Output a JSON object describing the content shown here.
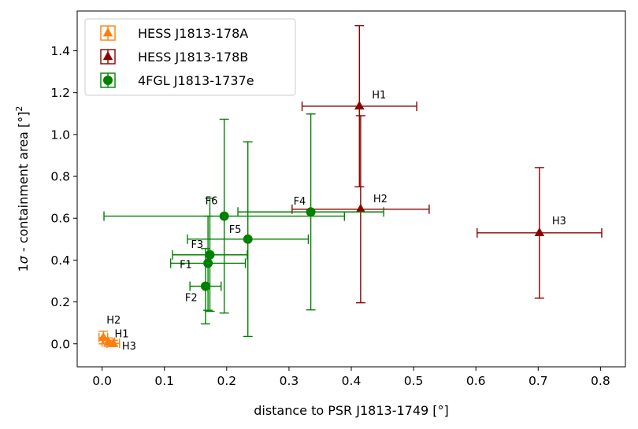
{
  "chart_data": {
    "type": "scatter",
    "title": "",
    "xlabel": "distance to PSR J1813-1749 [°]",
    "ylabel_prefix": "1",
    "ylabel_sigma": "σ",
    "ylabel_rest": " - containment area [°]",
    "ylabel_sup": "2",
    "xlim": [
      -0.04,
      0.84
    ],
    "ylim": [
      -0.11,
      1.59
    ],
    "xticks": [
      0.0,
      0.1,
      0.2,
      0.3,
      0.4,
      0.5,
      0.6,
      0.7,
      0.8
    ],
    "xtick_labels": [
      "0.0",
      "0.1",
      "0.2",
      "0.3",
      "0.4",
      "0.5",
      "0.6",
      "0.7",
      "0.8"
    ],
    "yticks": [
      0.0,
      0.2,
      0.4,
      0.6,
      0.8,
      1.0,
      1.2,
      1.4
    ],
    "ytick_labels": [
      "0.0",
      "0.2",
      "0.4",
      "0.6",
      "0.8",
      "1.0",
      "1.2",
      "1.4"
    ],
    "grid": false,
    "legend_position": "top-left",
    "series": [
      {
        "name": "HESS J1813-178A",
        "color": "#ff7f0e",
        "marker": "triangle",
        "points": [
          {
            "label": "H2",
            "x": 0.002,
            "y": 0.03,
            "xerr": 0.007,
            "yerr": 0.03
          },
          {
            "label": "H1",
            "x": 0.01,
            "y": 0.008,
            "xerr": 0.01,
            "yerr": 0.02
          },
          {
            "label": "H3",
            "x": 0.018,
            "y": 0.002,
            "xerr": 0.01,
            "yerr": 0.015
          }
        ]
      },
      {
        "name": "HESS J1813-178B",
        "color": "#8b0000",
        "marker": "triangle",
        "points": [
          {
            "label": "H1",
            "x": 0.413,
            "y": 1.135,
            "xerr": 0.092,
            "yerr": 0.385
          },
          {
            "label": "H2",
            "x": 0.415,
            "y": 0.643,
            "xerr": 0.11,
            "yerr": 0.447
          },
          {
            "label": "H3",
            "x": 0.702,
            "y": 0.53,
            "xerr": 0.1,
            "yerr": 0.312
          }
        ]
      },
      {
        "name": "4FGL J1813-1737e",
        "color": "#008000",
        "marker": "circle",
        "points": [
          {
            "label": "F1",
            "x": 0.17,
            "y": 0.385,
            "xerr": 0.06,
            "yerr": 0.225
          },
          {
            "label": "F2",
            "x": 0.166,
            "y": 0.275,
            "xerr": 0.025,
            "yerr": 0.18
          },
          {
            "label": "F3",
            "x": 0.173,
            "y": 0.425,
            "xerr": 0.06,
            "yerr": 0.27
          },
          {
            "label": "F4",
            "x": 0.335,
            "y": 0.63,
            "xerr": 0.117,
            "yerr": 0.468
          },
          {
            "label": "F5",
            "x": 0.234,
            "y": 0.5,
            "xerr": 0.097,
            "yerr": 0.465
          },
          {
            "label": "F6",
            "x": 0.196,
            "y": 0.61,
            "xerr": 0.193,
            "yerr": 0.463
          }
        ]
      }
    ]
  }
}
